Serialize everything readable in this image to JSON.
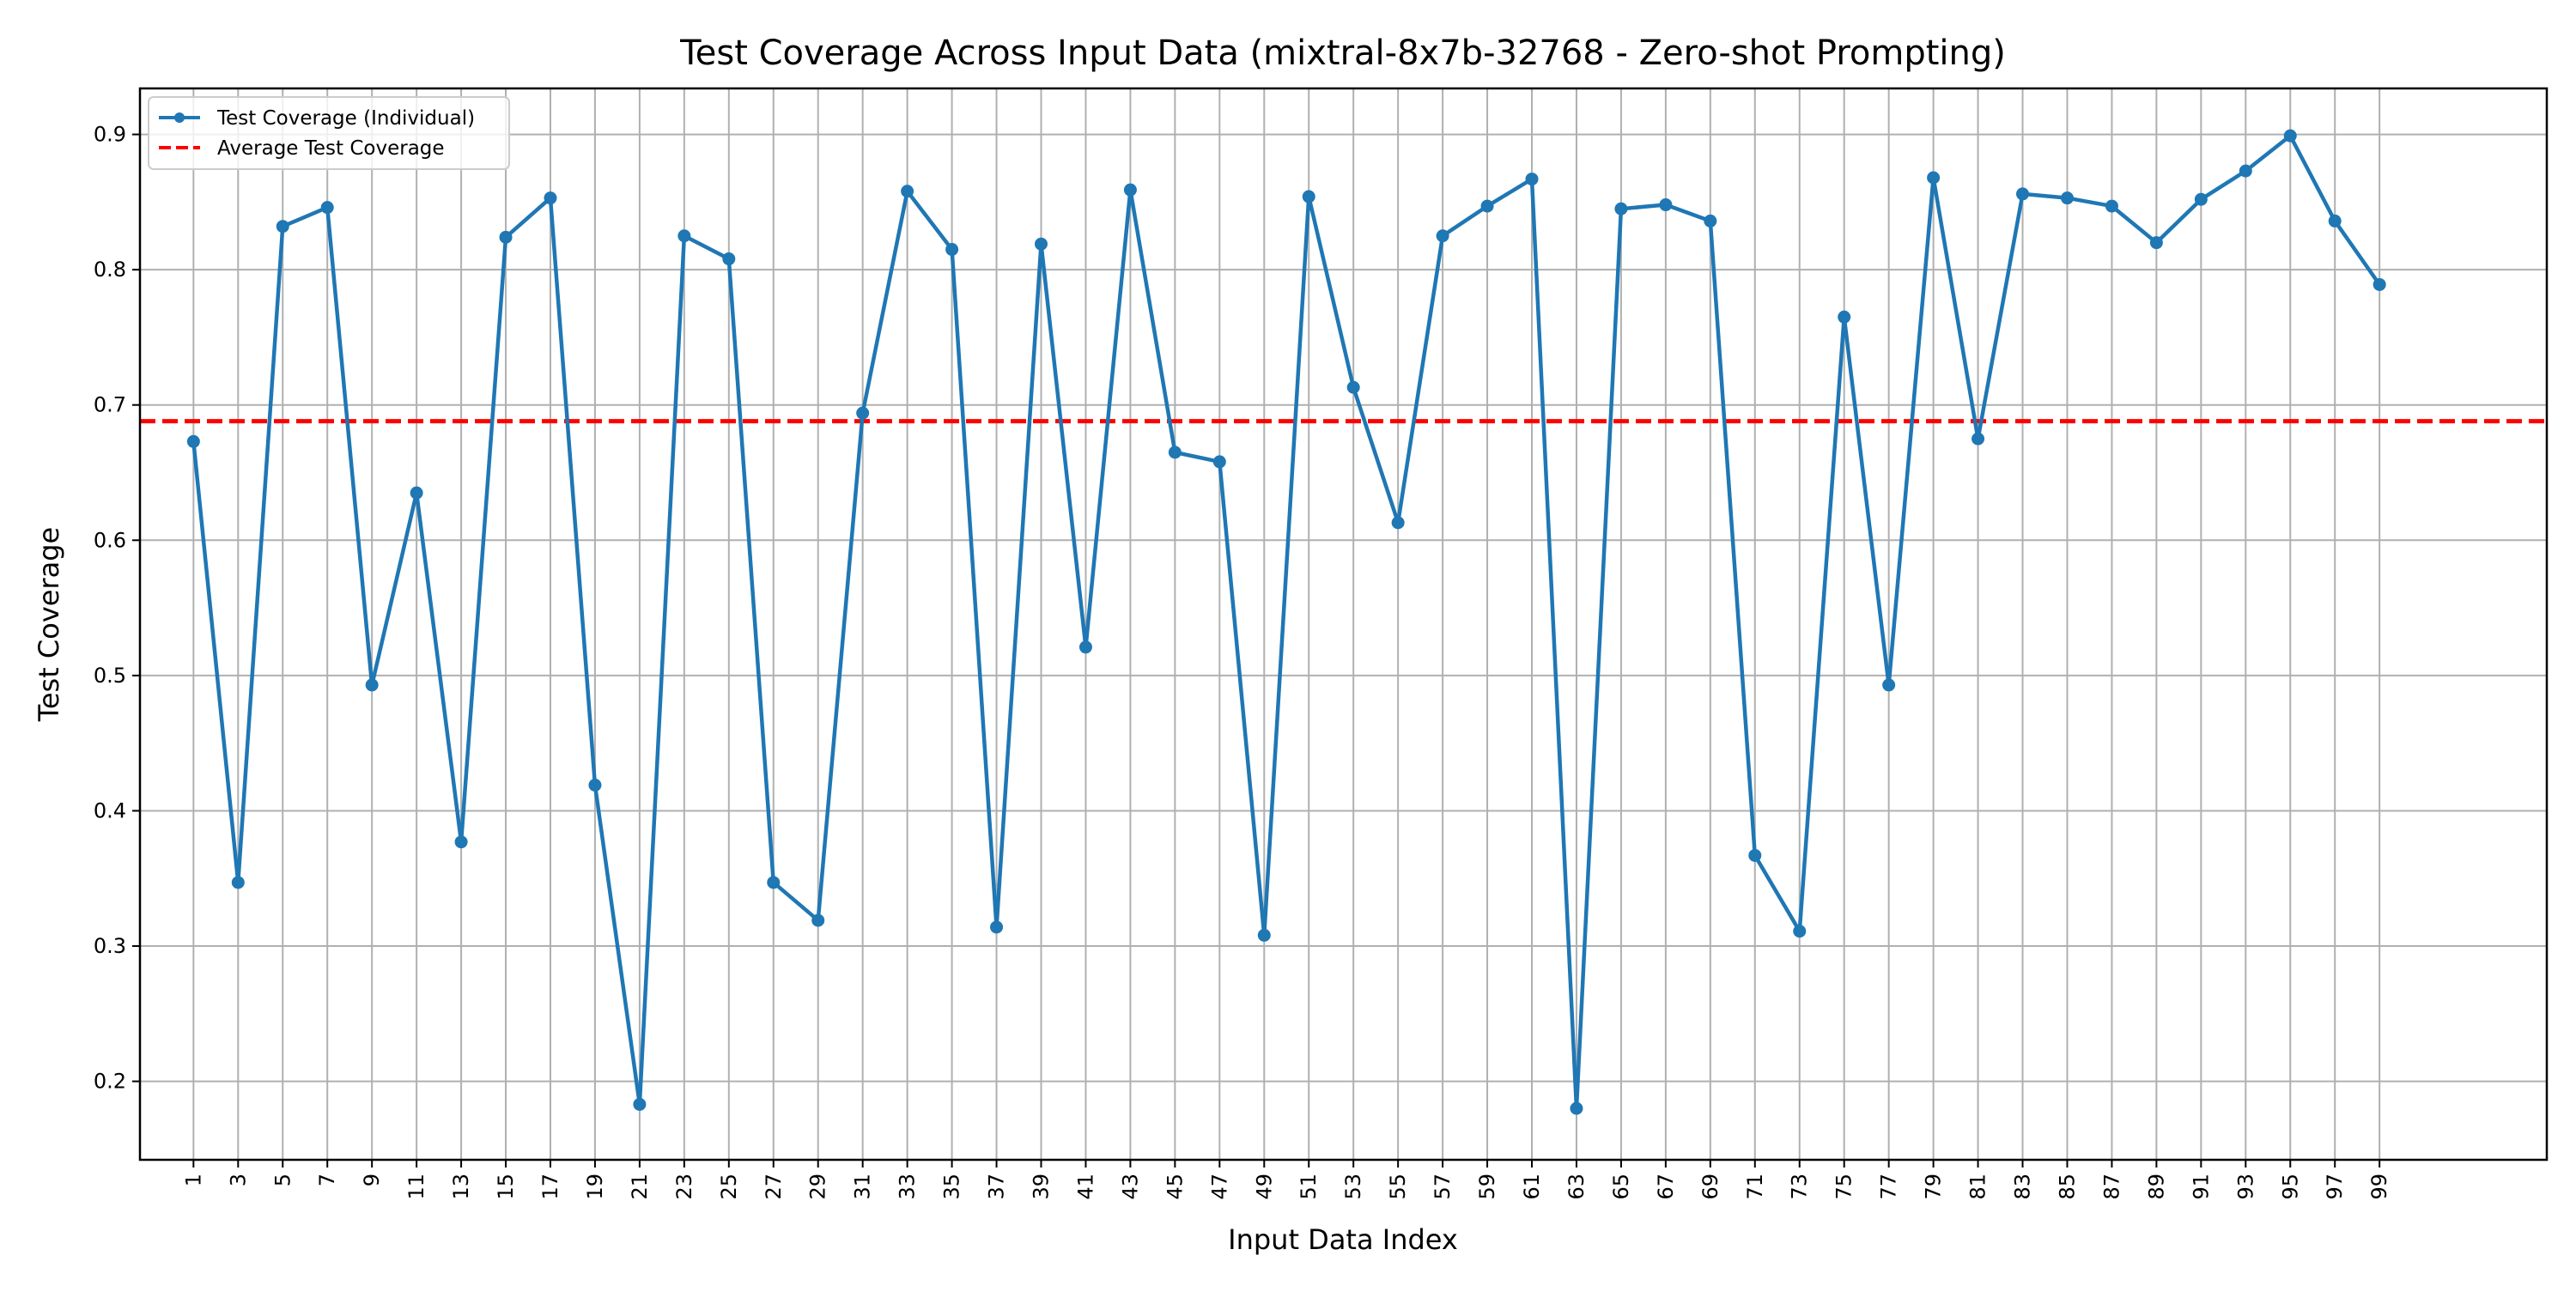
{
  "chart_data": {
    "type": "line",
    "title": "Test Coverage Across Input Data (mixtral-8x7b-32768 - Zero-shot Prompting)",
    "xlabel": "Input Data Index",
    "ylabel": "Test Coverage",
    "xlim": [
      -1.4,
      106.5
    ],
    "ylim": [
      0.142,
      0.934
    ],
    "yticks": [
      0.2,
      0.3,
      0.4,
      0.5,
      0.6,
      0.7,
      0.8,
      0.9
    ],
    "xticks": [
      1,
      3,
      5,
      7,
      9,
      11,
      13,
      15,
      17,
      19,
      21,
      23,
      25,
      27,
      29,
      31,
      33,
      35,
      37,
      39,
      41,
      43,
      45,
      47,
      49,
      51,
      53,
      55,
      57,
      59,
      61,
      63,
      65,
      67,
      69,
      71,
      73,
      75,
      77,
      79,
      81,
      83,
      85,
      87,
      89,
      91,
      93,
      95,
      97,
      99
    ],
    "grid": true,
    "legend_location": "upper-left",
    "series": [
      {
        "name": "Test Coverage (Individual)",
        "color": "#1f77b4",
        "style": "solid-with-markers",
        "x": [
          1,
          3,
          5,
          7,
          9,
          11,
          13,
          15,
          17,
          19,
          21,
          23,
          25,
          27,
          29,
          31,
          33,
          35,
          37,
          39,
          41,
          43,
          45,
          47,
          49,
          51,
          53,
          55,
          57,
          59,
          61,
          63,
          65,
          67,
          69,
          71,
          73,
          75,
          77,
          79,
          81,
          83,
          85,
          87,
          89,
          91,
          93,
          95,
          97,
          99
        ],
        "y": [
          0.673,
          0.347,
          0.832,
          0.846,
          0.493,
          0.635,
          0.377,
          0.824,
          0.853,
          0.419,
          0.183,
          0.825,
          0.808,
          0.347,
          0.319,
          0.694,
          0.858,
          0.815,
          0.314,
          0.819,
          0.521,
          0.859,
          0.665,
          0.658,
          0.308,
          0.854,
          0.713,
          0.613,
          0.825,
          0.847,
          0.867,
          0.18,
          0.845,
          0.848,
          0.836,
          0.367,
          0.311,
          0.765,
          0.493,
          0.868,
          0.675,
          0.856,
          0.853,
          0.847,
          0.82,
          0.852,
          0.873,
          0.899,
          0.836,
          0.789
        ]
      },
      {
        "name": "Average Test Coverage",
        "color": "#ff0000",
        "style": "dashed",
        "y": 0.688
      }
    ]
  }
}
